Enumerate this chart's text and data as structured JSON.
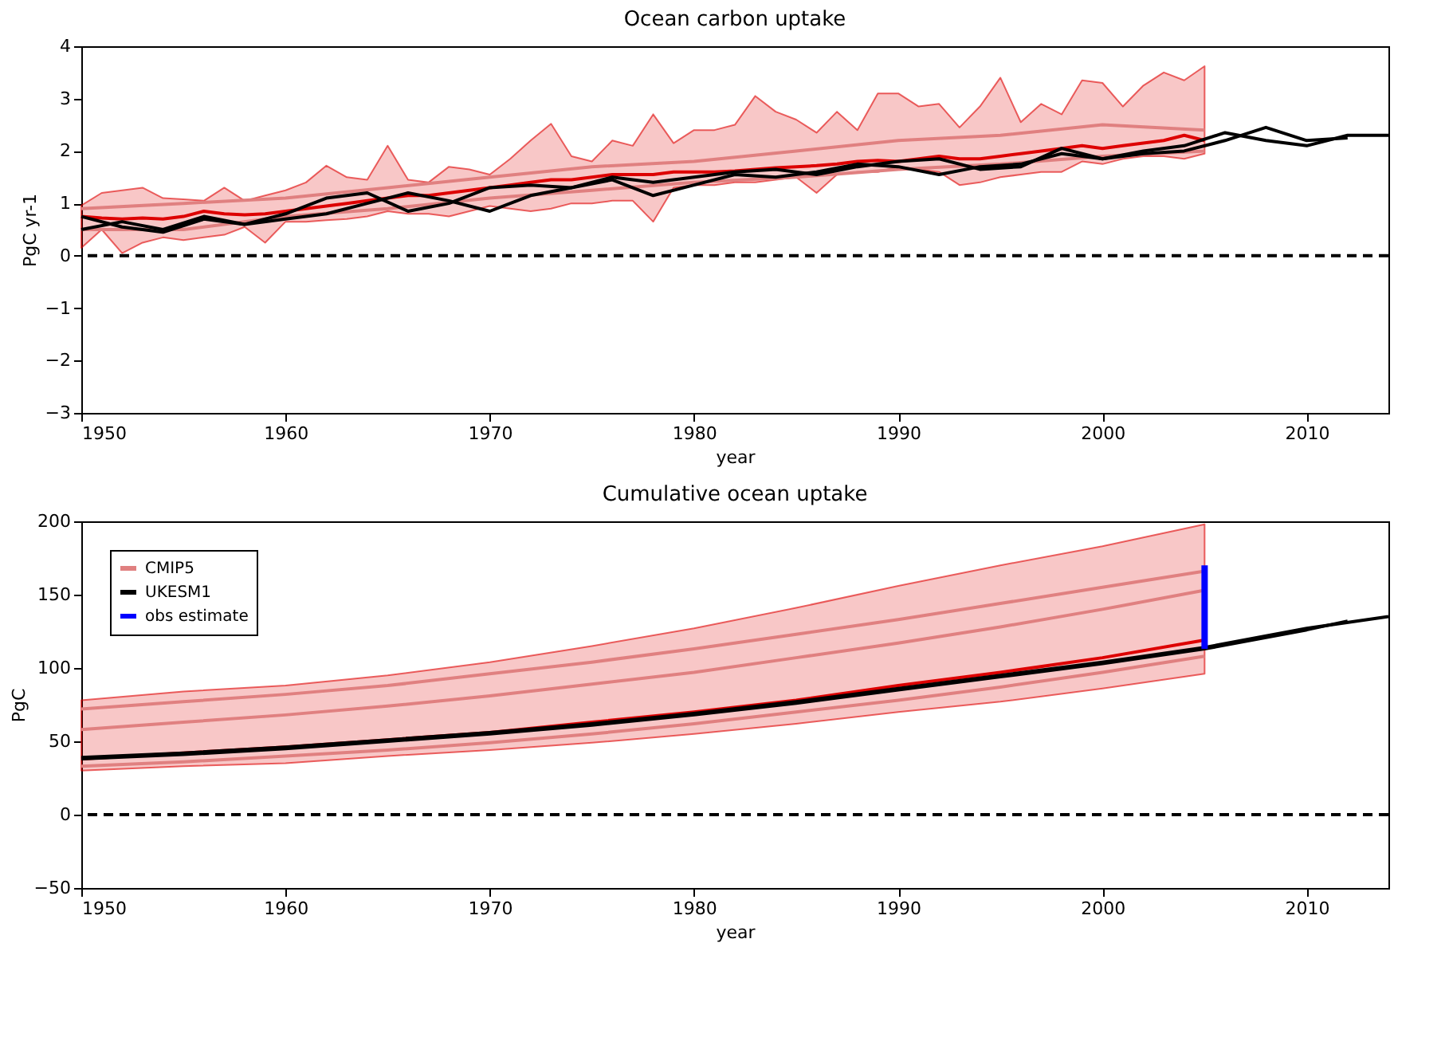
{
  "chart_data": [
    {
      "type": "line",
      "title": "Ocean carbon uptake",
      "xlabel": "year",
      "ylabel": "PgC yr-1",
      "xlim": [
        1950,
        2014
      ],
      "xticks": [
        1950,
        1960,
        1970,
        1980,
        1990,
        2000,
        2010
      ],
      "ylim": [
        -3,
        4
      ],
      "yticks": [
        -3,
        -2,
        -1,
        0,
        1,
        2,
        3,
        4
      ],
      "grid": false,
      "legend": false,
      "ref_lines": [
        {
          "axis": "y",
          "value": 0,
          "color": "#000000",
          "line_style": "dashed"
        }
      ],
      "series": [
        {
          "color": "#dd0000",
          "x": [
            1950,
            1951,
            1952,
            1953,
            1954,
            1955,
            1956,
            1957,
            1958,
            1959,
            1960,
            1961,
            1962,
            1963,
            1964,
            1965,
            1966,
            1967,
            1968,
            1969,
            1970,
            1971,
            1972,
            1973,
            1974,
            1975,
            1976,
            1977,
            1978,
            1979,
            1980,
            1981,
            1982,
            1983,
            1984,
            1985,
            1986,
            1987,
            1988,
            1989,
            1990,
            1991,
            1992,
            1993,
            1994,
            1995,
            1996,
            1997,
            1998,
            1999,
            2000,
            2001,
            2002,
            2003,
            2004,
            2005
          ],
          "values": [
            0.75,
            0.72,
            0.7,
            0.72,
            0.7,
            0.75,
            0.85,
            0.8,
            0.78,
            0.8,
            0.85,
            0.9,
            0.95,
            1.0,
            1.05,
            1.1,
            1.15,
            1.15,
            1.2,
            1.25,
            1.3,
            1.35,
            1.4,
            1.45,
            1.45,
            1.5,
            1.55,
            1.55,
            1.55,
            1.6,
            1.6,
            1.6,
            1.62,
            1.65,
            1.68,
            1.7,
            1.72,
            1.75,
            1.8,
            1.82,
            1.8,
            1.85,
            1.9,
            1.85,
            1.85,
            1.9,
            1.95,
            2.0,
            2.05,
            2.1,
            2.05,
            2.1,
            2.15,
            2.2,
            2.3,
            2.2
          ],
          "upper": [
            0.96,
            1.2,
            1.25,
            1.3,
            1.1,
            1.08,
            1.05,
            1.3,
            1.05,
            1.15,
            1.25,
            1.4,
            1.72,
            1.5,
            1.45,
            2.1,
            1.45,
            1.4,
            1.7,
            1.65,
            1.55,
            1.85,
            2.2,
            2.52,
            1.9,
            1.8,
            2.2,
            2.1,
            2.7,
            2.15,
            2.4,
            2.4,
            2.5,
            3.05,
            2.75,
            2.6,
            2.35,
            2.75,
            2.4,
            3.1,
            3.1,
            2.85,
            2.9,
            2.45,
            2.85,
            3.4,
            2.55,
            2.9,
            2.7,
            3.35,
            3.3,
            2.85,
            3.25,
            3.5,
            3.35,
            3.62
          ],
          "lower": [
            0.15,
            0.5,
            0.05,
            0.25,
            0.35,
            0.3,
            0.35,
            0.4,
            0.55,
            0.25,
            0.65,
            0.65,
            0.68,
            0.7,
            0.75,
            0.85,
            0.8,
            0.8,
            0.75,
            0.85,
            0.95,
            0.9,
            0.85,
            0.9,
            1.0,
            1.0,
            1.05,
            1.05,
            0.65,
            1.3,
            1.35,
            1.35,
            1.4,
            1.4,
            1.45,
            1.5,
            1.2,
            1.55,
            1.6,
            1.6,
            1.7,
            1.65,
            1.6,
            1.35,
            1.4,
            1.5,
            1.55,
            1.6,
            1.6,
            1.8,
            1.75,
            1.85,
            1.9,
            1.9,
            1.85,
            1.95
          ]
        },
        {
          "color": "#e08080",
          "x": [
            1950,
            1955,
            1960,
            1965,
            1970,
            1975,
            1980,
            1985,
            1990,
            1995,
            2000,
            2005
          ],
          "values": [
            0.9,
            1.0,
            1.1,
            1.3,
            1.5,
            1.7,
            1.8,
            2.0,
            2.2,
            2.3,
            2.5,
            2.4
          ]
        },
        {
          "color": "#e08080",
          "x": [
            1950,
            1955,
            1960,
            1965,
            1970,
            1975,
            1980,
            1985,
            1990,
            1995,
            2000,
            2005
          ],
          "values": [
            0.5,
            0.5,
            0.75,
            0.9,
            1.1,
            1.25,
            1.4,
            1.5,
            1.65,
            1.75,
            1.9,
            2.0
          ]
        },
        {
          "color": "#000000",
          "x": [
            1950,
            1952,
            1954,
            1956,
            1958,
            1960,
            1962,
            1964,
            1966,
            1968,
            1970,
            1972,
            1974,
            1976,
            1978,
            1980,
            1982,
            1984,
            1986,
            1988,
            1990,
            1992,
            1994,
            1996,
            1998,
            2000,
            2002,
            2004,
            2006,
            2008,
            2010,
            2012,
            2014
          ],
          "values": [
            0.75,
            0.55,
            0.45,
            0.7,
            0.6,
            0.7,
            0.8,
            1.0,
            1.2,
            1.05,
            0.85,
            1.15,
            1.3,
            1.45,
            1.15,
            1.35,
            1.55,
            1.5,
            1.6,
            1.75,
            1.7,
            1.55,
            1.7,
            1.75,
            1.95,
            1.85,
            2.0,
            2.1,
            2.35,
            2.2,
            2.1,
            2.3,
            2.3
          ]
        },
        {
          "color": "#000000",
          "x": [
            1950,
            1952,
            1954,
            1956,
            1958,
            1960,
            1962,
            1964,
            1966,
            1968,
            1970,
            1972,
            1974,
            1976,
            1978,
            1980,
            1982,
            1984,
            1986,
            1988,
            1990,
            1992,
            1994,
            1996,
            1998,
            2000,
            2002,
            2004,
            2006,
            2008,
            2010,
            2012
          ],
          "values": [
            0.5,
            0.65,
            0.5,
            0.75,
            0.6,
            0.8,
            1.1,
            1.2,
            0.85,
            1.0,
            1.3,
            1.35,
            1.3,
            1.5,
            1.4,
            1.5,
            1.6,
            1.65,
            1.55,
            1.7,
            1.8,
            1.85,
            1.65,
            1.7,
            2.05,
            1.85,
            1.95,
            2.0,
            2.2,
            2.45,
            2.2,
            2.25
          ]
        }
      ]
    },
    {
      "type": "line",
      "title": "Cumulative ocean uptake",
      "xlabel": "year",
      "ylabel": "PgC",
      "xlim": [
        1950,
        2014
      ],
      "xticks": [
        1950,
        1960,
        1970,
        1980,
        1990,
        2000,
        2010
      ],
      "ylim": [
        -50,
        200
      ],
      "yticks": [
        -50,
        0,
        50,
        100,
        150,
        200
      ],
      "grid": false,
      "legend": "top left",
      "ref_lines": [
        {
          "axis": "y",
          "value": 0,
          "color": "#000000",
          "line_style": "dashed"
        }
      ],
      "series": [
        {
          "color": "#dd0000",
          "x": [
            1950,
            1955,
            1960,
            1965,
            1970,
            1975,
            1980,
            1985,
            1990,
            1995,
            2000,
            2005
          ],
          "values": [
            38,
            42,
            46,
            51,
            56,
            63,
            70,
            78,
            88,
            97,
            107,
            119
          ],
          "upper": [
            78,
            84,
            88,
            95,
            104,
            115,
            127,
            141,
            156,
            170,
            183,
            198
          ],
          "lower": [
            30,
            33,
            35,
            40,
            44,
            49,
            55,
            62,
            70,
            77,
            86,
            96
          ]
        },
        {
          "name": "CMIP5",
          "color": "#e08080",
          "x": [
            1950,
            1955,
            1960,
            1965,
            1970,
            1975,
            1980,
            1985,
            1990,
            1995,
            2000,
            2005
          ],
          "values": [
            72,
            77,
            82,
            88,
            96,
            104,
            113,
            123,
            133,
            144,
            155,
            166
          ]
        },
        {
          "color": "#e08080",
          "x": [
            1950,
            1955,
            1960,
            1965,
            1970,
            1975,
            1980,
            1985,
            1990,
            1995,
            2000,
            2005
          ],
          "values": [
            58,
            63,
            68,
            74,
            81,
            89,
            97,
            107,
            117,
            128,
            140,
            153
          ]
        },
        {
          "color": "#e08080",
          "x": [
            1950,
            1955,
            1960,
            1965,
            1970,
            1975,
            1980,
            1985,
            1990,
            1995,
            2000,
            2005
          ],
          "values": [
            33,
            36,
            40,
            44,
            49,
            55,
            62,
            70,
            78,
            87,
            97,
            108
          ]
        },
        {
          "name": "UKESM1",
          "color": "#000000",
          "x": [
            1950,
            1955,
            1960,
            1965,
            1970,
            1975,
            1980,
            1985,
            1990,
            1995,
            2000,
            2005,
            2010,
            2014
          ],
          "values": [
            39,
            42,
            46,
            51,
            56,
            62,
            69,
            77,
            86,
            95,
            104,
            114,
            127,
            135
          ]
        },
        {
          "color": "#000000",
          "x": [
            1950,
            1955,
            1960,
            1965,
            1970,
            1975,
            1980,
            1985,
            1990,
            1995,
            2000,
            2005,
            2010,
            2012
          ],
          "values": [
            38,
            41,
            45,
            50,
            55,
            61,
            68,
            76,
            85,
            94,
            103,
            113,
            126,
            132
          ]
        },
        {
          "name": "obs estimate",
          "color": "#0000ff",
          "x": [
            2005,
            2005
          ],
          "values": [
            113,
            170
          ]
        }
      ]
    }
  ]
}
